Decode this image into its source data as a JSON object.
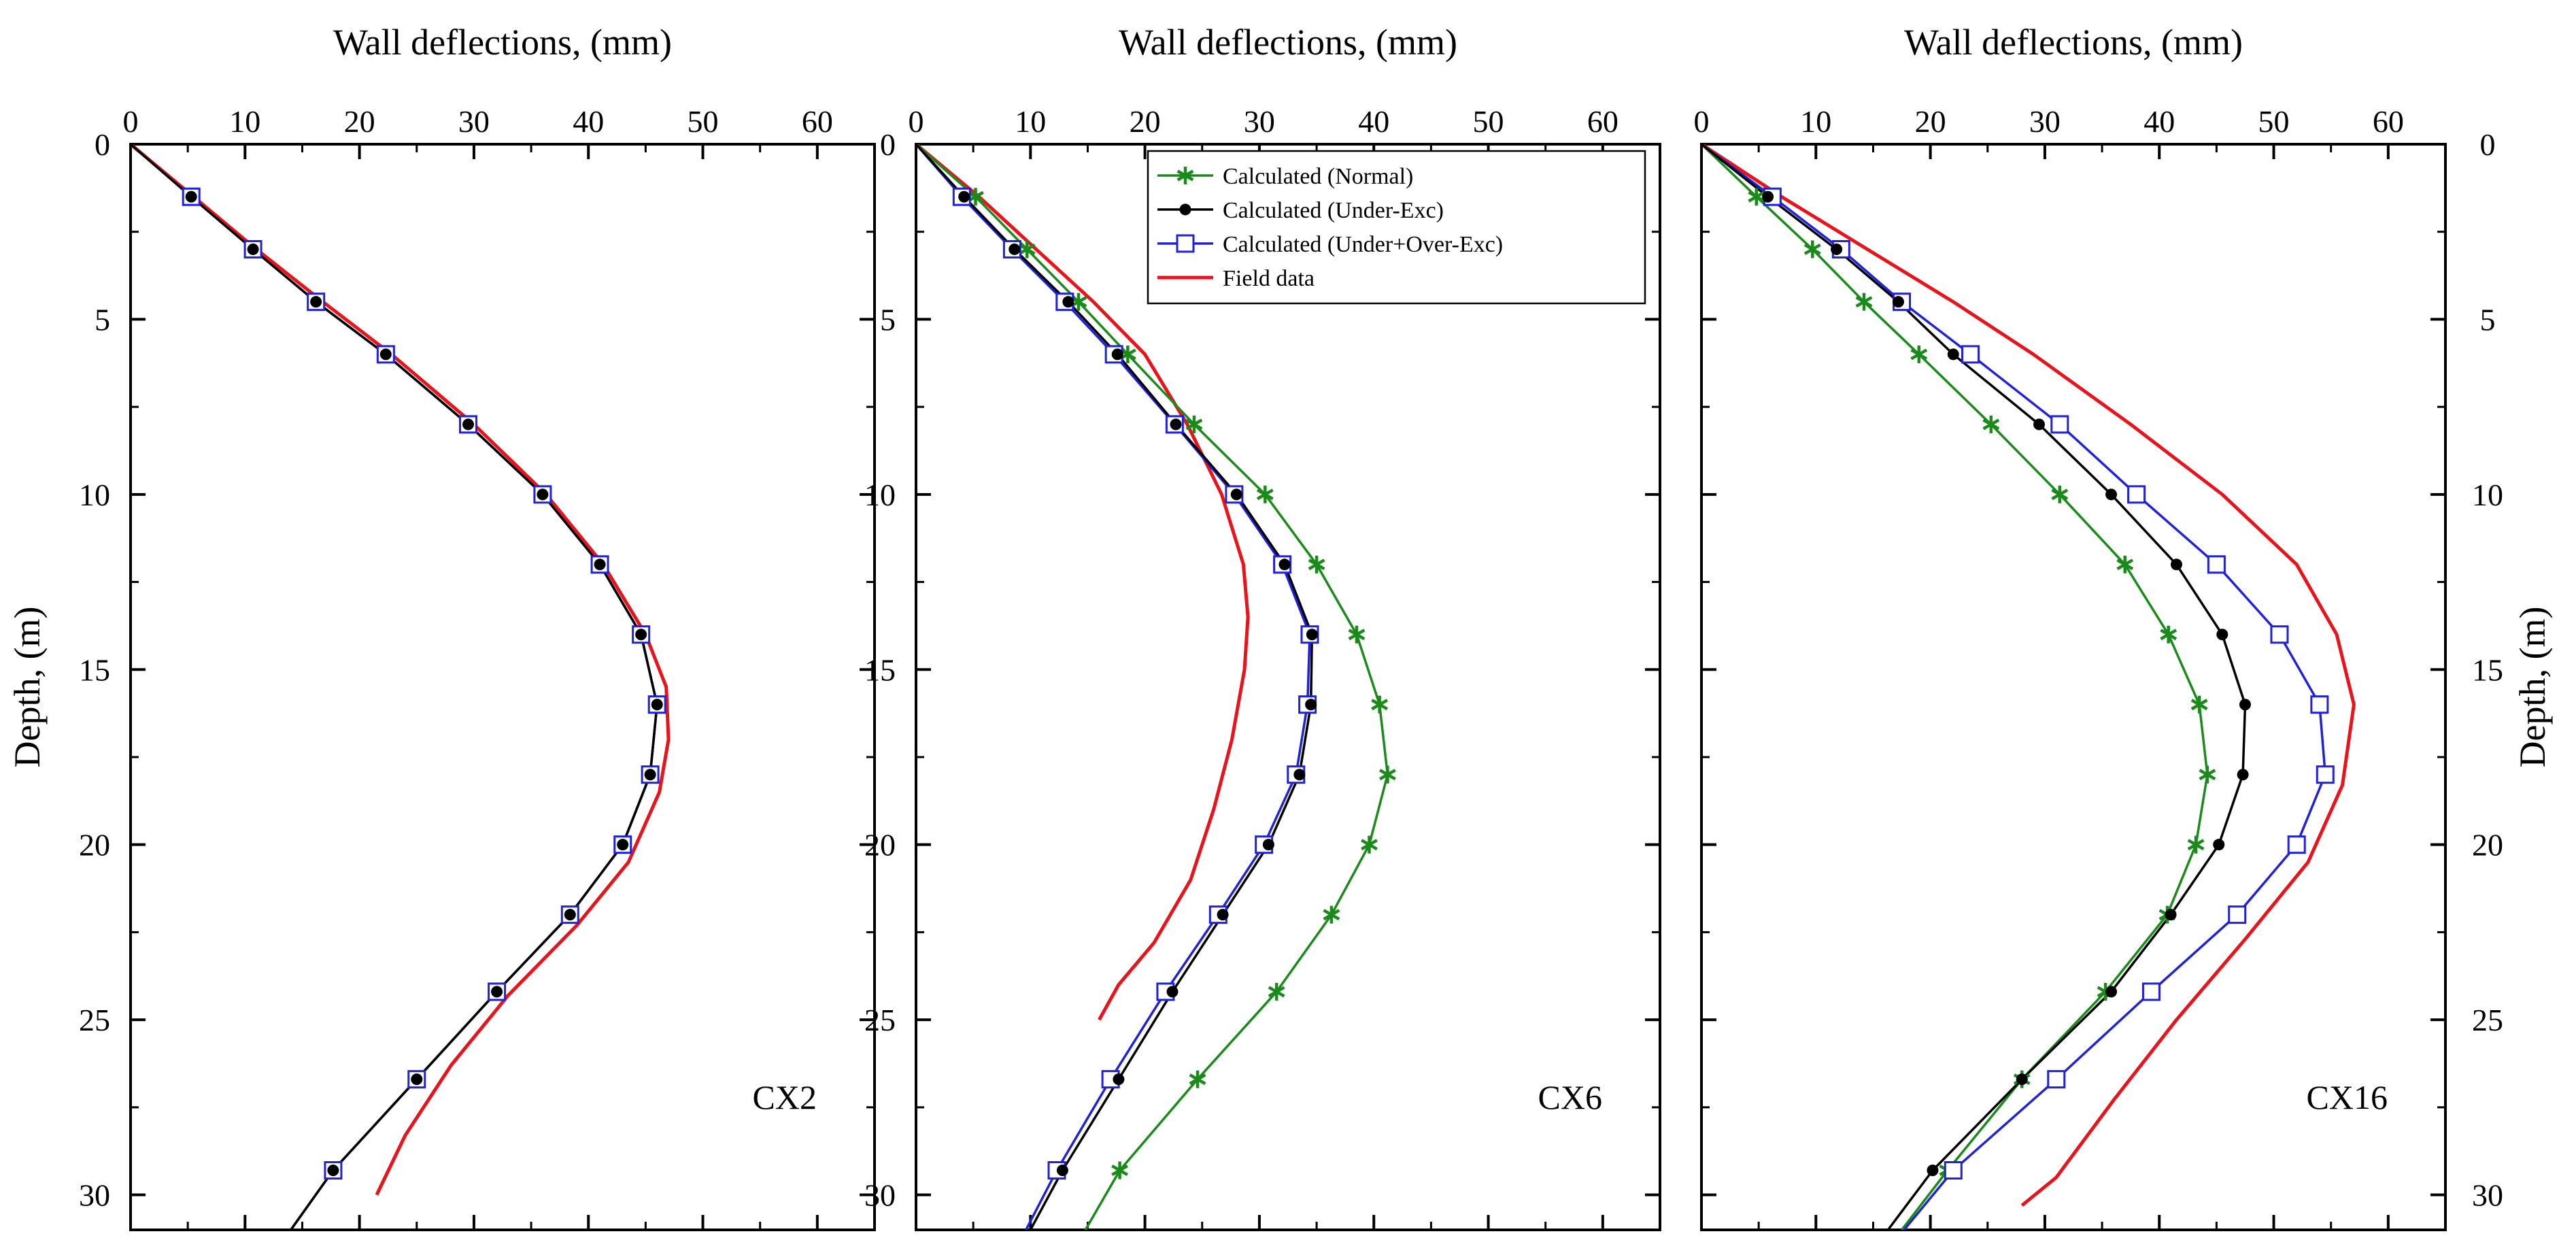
{
  "chart_data": [
    {
      "type": "line",
      "panel_label": "CX2",
      "xlabel": "Wall deflections, (mm)",
      "ylabel": "Depth, (m)",
      "xlim": [
        0,
        65
      ],
      "ylim": [
        0,
        31
      ],
      "y_inverted": true,
      "x_axis_position": "top",
      "x_ticks": [
        0,
        10,
        20,
        30,
        40,
        50,
        60
      ],
      "y_ticks": [
        0,
        5,
        10,
        15,
        20,
        25,
        30
      ],
      "series": [
        {
          "key": "normal",
          "points": [
            [
              0,
              0
            ],
            [
              5.3,
              1.5
            ],
            [
              10.7,
              3
            ],
            [
              16.2,
              4.5
            ],
            [
              22.3,
              6
            ],
            [
              29.5,
              8
            ],
            [
              36,
              10
            ],
            [
              41,
              12
            ],
            [
              44.6,
              14
            ],
            [
              46,
              16
            ],
            [
              45.4,
              18
            ],
            [
              43,
              20
            ],
            [
              38.4,
              22
            ],
            [
              32,
              24.2
            ],
            [
              25,
              26.7
            ],
            [
              17.7,
              29.3
            ],
            [
              14,
              31
            ]
          ]
        },
        {
          "key": "under_exc",
          "points": [
            [
              0,
              0
            ],
            [
              5.3,
              1.5
            ],
            [
              10.7,
              3
            ],
            [
              16.2,
              4.5
            ],
            [
              22.3,
              6
            ],
            [
              29.5,
              8
            ],
            [
              36,
              10
            ],
            [
              41,
              12
            ],
            [
              44.6,
              14
            ],
            [
              46,
              16
            ],
            [
              45.4,
              18
            ],
            [
              43,
              20
            ],
            [
              38.4,
              22
            ],
            [
              32,
              24.2
            ],
            [
              25,
              26.7
            ],
            [
              17.7,
              29.3
            ],
            [
              14,
              31
            ]
          ]
        },
        {
          "key": "under_over_exc",
          "points": [
            [
              0,
              0
            ],
            [
              5.3,
              1.5
            ],
            [
              10.7,
              3
            ],
            [
              16.2,
              4.5
            ],
            [
              22.3,
              6
            ],
            [
              29.5,
              8
            ],
            [
              36,
              10
            ],
            [
              41,
              12
            ],
            [
              44.6,
              14
            ],
            [
              46,
              16
            ],
            [
              45.4,
              18
            ],
            [
              43,
              20
            ],
            [
              38.4,
              22
            ],
            [
              32,
              24.2
            ],
            [
              25,
              26.7
            ],
            [
              17.7,
              29.3
            ],
            [
              14,
              31
            ]
          ]
        },
        {
          "key": "field",
          "points": [
            [
              0,
              0
            ],
            [
              5.5,
              1.5
            ],
            [
              11,
              3
            ],
            [
              16.8,
              4.5
            ],
            [
              22.8,
              6
            ],
            [
              30,
              8
            ],
            [
              36.3,
              10
            ],
            [
              41.3,
              12
            ],
            [
              45,
              14
            ],
            [
              46.8,
              15.5
            ],
            [
              47,
              17
            ],
            [
              46.2,
              18.5
            ],
            [
              43.5,
              20.5
            ],
            [
              39,
              22.3
            ],
            [
              33,
              24.3
            ],
            [
              28,
              26.3
            ],
            [
              24,
              28.3
            ],
            [
              21.5,
              30
            ]
          ]
        }
      ]
    },
    {
      "type": "line",
      "panel_label": "CX6",
      "xlabel": "Wall deflections, (mm)",
      "xlim": [
        0,
        65
      ],
      "ylim": [
        0,
        31
      ],
      "y_inverted": true,
      "x_axis_position": "top",
      "x_ticks": [
        0,
        10,
        20,
        30,
        40,
        50,
        60
      ],
      "y_ticks": [
        0,
        5,
        10,
        15,
        20,
        25,
        30
      ],
      "legend": {
        "position": "top-right",
        "entries": [
          {
            "key": "normal",
            "label": "Calculated (Normal)"
          },
          {
            "key": "under_exc",
            "label": "Calculated (Under-Exc)"
          },
          {
            "key": "under_over_exc",
            "label": "Calculated (Under+Over-Exc)"
          },
          {
            "key": "field",
            "label": "Field data"
          }
        ]
      },
      "series": [
        {
          "key": "normal",
          "points": [
            [
              0,
              0
            ],
            [
              5.2,
              1.5
            ],
            [
              9.7,
              3
            ],
            [
              14.2,
              4.5
            ],
            [
              18.5,
              6
            ],
            [
              24.3,
              8
            ],
            [
              30.5,
              10
            ],
            [
              35,
              12
            ],
            [
              38.5,
              14
            ],
            [
              40.5,
              16
            ],
            [
              41.2,
              18
            ],
            [
              39.6,
              20
            ],
            [
              36.3,
              22
            ],
            [
              31.5,
              24.2
            ],
            [
              24.6,
              26.7
            ],
            [
              17.8,
              29.3
            ],
            [
              14.8,
              31
            ]
          ]
        },
        {
          "key": "under_exc",
          "points": [
            [
              0,
              0
            ],
            [
              4.2,
              1.5
            ],
            [
              8.6,
              3
            ],
            [
              13.3,
              4.5
            ],
            [
              17.6,
              6
            ],
            [
              22.7,
              8
            ],
            [
              28,
              10
            ],
            [
              32.2,
              12
            ],
            [
              34.6,
              14
            ],
            [
              34.5,
              16
            ],
            [
              33.5,
              18
            ],
            [
              30.8,
              20
            ],
            [
              26.8,
              22
            ],
            [
              22.4,
              24.2
            ],
            [
              17.7,
              26.7
            ],
            [
              12.8,
              29.3
            ],
            [
              10,
              31
            ]
          ]
        },
        {
          "key": "under_over_exc",
          "points": [
            [
              0,
              0
            ],
            [
              4,
              1.5
            ],
            [
              8.4,
              3
            ],
            [
              13,
              4.5
            ],
            [
              17.3,
              6
            ],
            [
              22.6,
              8
            ],
            [
              27.8,
              10
            ],
            [
              32,
              12
            ],
            [
              34.4,
              14
            ],
            [
              34.2,
              16
            ],
            [
              33.2,
              18
            ],
            [
              30.4,
              20
            ],
            [
              26.4,
              22
            ],
            [
              21.8,
              24.2
            ],
            [
              17,
              26.7
            ],
            [
              12.3,
              29.3
            ],
            [
              9.6,
              31
            ]
          ]
        },
        {
          "key": "field",
          "points": [
            [
              0,
              0
            ],
            [
              5.5,
              1.5
            ],
            [
              10.5,
              3
            ],
            [
              15.5,
              4.5
            ],
            [
              20,
              6
            ],
            [
              23.7,
              8
            ],
            [
              26.7,
              10
            ],
            [
              28.6,
              12
            ],
            [
              29,
              13.5
            ],
            [
              28.7,
              15
            ],
            [
              27.6,
              17
            ],
            [
              26,
              19
            ],
            [
              24,
              21
            ],
            [
              20.8,
              22.8
            ],
            [
              17.7,
              24
            ],
            [
              16,
              25
            ]
          ]
        }
      ]
    },
    {
      "type": "line",
      "panel_label": "CX16",
      "xlabel": "Wall deflections, (mm)",
      "ylabel": "Depth, (m)",
      "xlim": [
        0,
        65
      ],
      "ylim": [
        0,
        31
      ],
      "y_inverted": true,
      "x_axis_position": "top",
      "y_axis_position": "right",
      "x_ticks": [
        0,
        10,
        20,
        30,
        40,
        50,
        60
      ],
      "y_ticks": [
        0,
        5,
        10,
        15,
        20,
        25,
        30
      ],
      "series": [
        {
          "key": "normal",
          "points": [
            [
              0,
              0
            ],
            [
              4.8,
              1.5
            ],
            [
              9.7,
              3
            ],
            [
              14.2,
              4.5
            ],
            [
              19,
              6
            ],
            [
              25.3,
              8
            ],
            [
              31.3,
              10
            ],
            [
              37,
              12
            ],
            [
              40.8,
              14
            ],
            [
              43.5,
              16
            ],
            [
              44.2,
              18
            ],
            [
              43.2,
              20
            ],
            [
              40.7,
              22
            ],
            [
              35.3,
              24.2
            ],
            [
              28,
              26.7
            ],
            [
              21.5,
              29.3
            ],
            [
              17.5,
              31
            ]
          ]
        },
        {
          "key": "under_exc",
          "points": [
            [
              0,
              0
            ],
            [
              5.8,
              1.5
            ],
            [
              11.8,
              3
            ],
            [
              17.2,
              4.5
            ],
            [
              22,
              6
            ],
            [
              29.5,
              8
            ],
            [
              35.8,
              10
            ],
            [
              41.5,
              12
            ],
            [
              45.5,
              14
            ],
            [
              47.5,
              16
            ],
            [
              47.3,
              18
            ],
            [
              45.2,
              20
            ],
            [
              41,
              22
            ],
            [
              35.8,
              24.2
            ],
            [
              28,
              26.7
            ],
            [
              20.2,
              29.3
            ],
            [
              16.3,
              31
            ]
          ]
        },
        {
          "key": "under_over_exc",
          "points": [
            [
              0,
              0
            ],
            [
              6.2,
              1.5
            ],
            [
              12.2,
              3
            ],
            [
              17.5,
              4.5
            ],
            [
              23.5,
              6
            ],
            [
              31.3,
              8
            ],
            [
              38,
              10
            ],
            [
              45,
              12
            ],
            [
              50.5,
              14
            ],
            [
              54,
              16
            ],
            [
              54.5,
              18
            ],
            [
              52,
              20
            ],
            [
              46.8,
              22
            ],
            [
              39.3,
              24.2
            ],
            [
              31,
              26.7
            ],
            [
              22,
              29.3
            ],
            [
              17.7,
              31
            ]
          ]
        },
        {
          "key": "field",
          "points": [
            [
              0,
              0
            ],
            [
              7,
              1.5
            ],
            [
              14.5,
              3
            ],
            [
              22,
              4.5
            ],
            [
              29,
              6
            ],
            [
              37.5,
              8
            ],
            [
              45.5,
              10
            ],
            [
              52,
              12
            ],
            [
              55.5,
              14
            ],
            [
              57,
              16
            ],
            [
              56,
              18.3
            ],
            [
              53,
              20.5
            ],
            [
              47.5,
              22.7
            ],
            [
              41.5,
              25
            ],
            [
              36,
              27.3
            ],
            [
              31,
              29.5
            ],
            [
              28,
              30.3
            ]
          ]
        }
      ]
    }
  ],
  "styles": {
    "normal": {
      "color": "#1a8a1a",
      "marker": "asterisk"
    },
    "under_exc": {
      "color": "#000000",
      "marker": "filled-circle"
    },
    "under_over_exc": {
      "color": "#1f22d8",
      "marker": "open-square"
    },
    "field": {
      "color": "#e8131b",
      "marker": "none"
    }
  }
}
